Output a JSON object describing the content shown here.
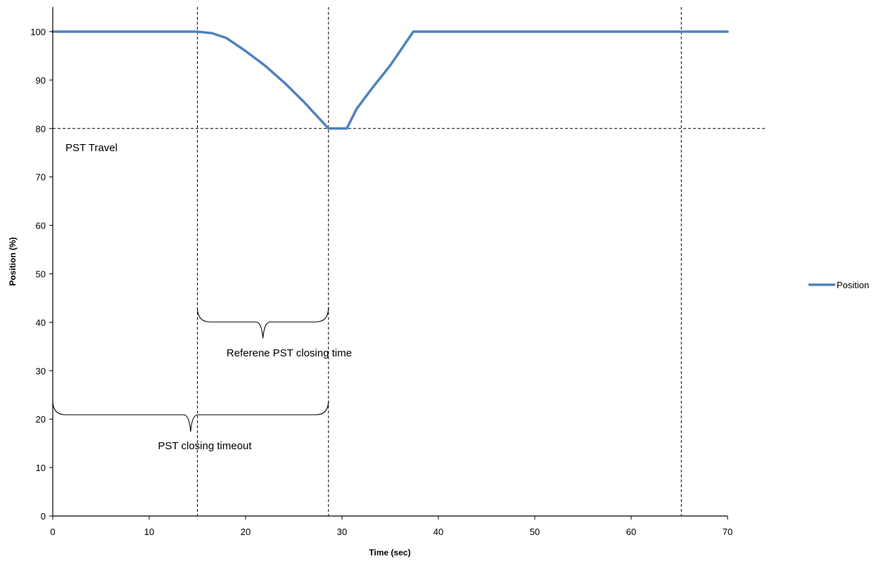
{
  "chart_data": {
    "type": "line",
    "title": "",
    "xlabel": "Time (sec)",
    "ylabel": "Position (%)",
    "xlim": [
      0,
      70
    ],
    "ylim": [
      0,
      100
    ],
    "x_ticks": [
      0,
      10,
      20,
      30,
      40,
      50,
      60,
      70
    ],
    "y_ticks": [
      0,
      10,
      20,
      30,
      40,
      50,
      60,
      70,
      80,
      90,
      100
    ],
    "grid": false,
    "legend_position": "right",
    "series": [
      {
        "name": "Position",
        "color": "#4F81BD",
        "x": [
          0,
          15,
          16.5,
          18,
          20,
          22,
          24,
          26,
          28.6,
          30.5,
          31.5,
          33,
          35,
          37.4,
          70
        ],
        "y": [
          100,
          100,
          99.7,
          98.7,
          96.0,
          93.0,
          89.5,
          85.6,
          80,
          80,
          84,
          88,
          93,
          100,
          100
        ]
      }
    ],
    "reference_lines": {
      "vertical": [
        15,
        28.6,
        65.2
      ],
      "horizontal": [
        80
      ]
    },
    "annotations": [
      {
        "id": "pst-travel",
        "text": "PST Travel"
      },
      {
        "id": "reference-closing",
        "text": "Referene PST  closing time"
      },
      {
        "id": "closing-timeout",
        "text": "PST closing timeout"
      }
    ]
  }
}
